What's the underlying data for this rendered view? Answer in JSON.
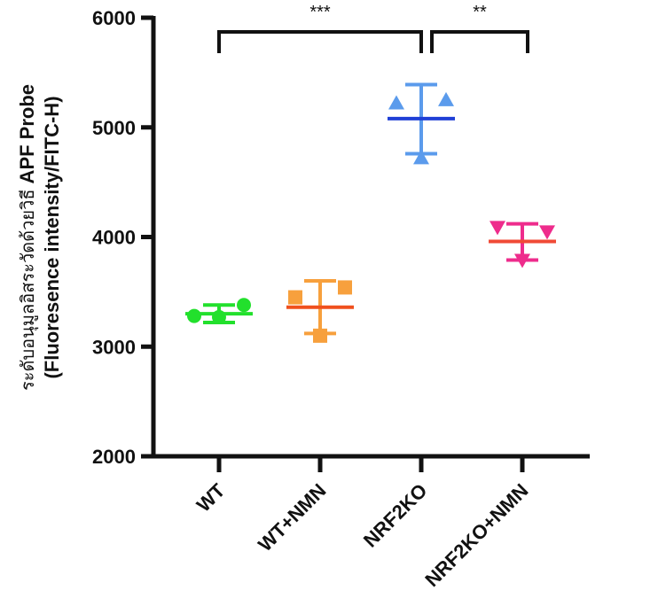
{
  "chart_data": {
    "type": "scatter",
    "ylabel_line1_thai": "ระดับอนุมูลอิสระวัดด้วยวิธี",
    "ylabel_line1_bold": "APF Probe",
    "ylabel_line2": "(Fluoresence intensity/FITC-H)",
    "ylim": [
      2000,
      6000
    ],
    "yticks": [
      "2000",
      "3000",
      "4000",
      "5000",
      "6000"
    ],
    "categories": [
      "WT",
      "WT+NMN",
      "NRF2KO",
      "NRF2KO+NMN"
    ],
    "series": [
      {
        "category": "WT",
        "color": "#22e02c",
        "marker": "circle",
        "points": [
          3280,
          3380,
          3270
        ],
        "mean": 3300,
        "sd_low": 3220,
        "sd_high": 3380
      },
      {
        "category": "WT+NMN",
        "color": "#f7a03d",
        "marker": "square",
        "points": [
          3450,
          3540,
          3100
        ],
        "mean": 3360,
        "sd_low": 3120,
        "sd_high": 3600,
        "mean_color": "#f0501e"
      },
      {
        "category": "NRF2KO",
        "color": "#5b9bec",
        "marker": "triangle-up",
        "points": [
          5220,
          5250,
          4720
        ],
        "mean": 5080,
        "sd_low": 4760,
        "sd_high": 5390,
        "mean_color": "#1f3fd6"
      },
      {
        "category": "NRF2KO+NMN",
        "color": "#ee2c8c",
        "marker": "triangle-down",
        "points": [
          4090,
          4050,
          3790
        ],
        "mean": 3960,
        "sd_low": 3790,
        "sd_high": 4120,
        "mean_color": "#f04a36"
      }
    ],
    "significance": [
      {
        "from": "WT",
        "to": "NRF2KO",
        "label": "***"
      },
      {
        "from": "NRF2KO",
        "to": "NRF2KO+NMN",
        "label": "**"
      }
    ]
  }
}
